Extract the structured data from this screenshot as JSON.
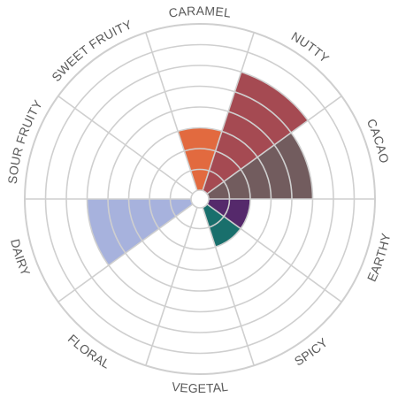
{
  "chart_data": {
    "type": "radial-bar",
    "categories": [
      "CARAMEL",
      "NUTTY",
      "CACAO",
      "EARTHY",
      "SPICY",
      "VEGETAL",
      "FLORAL",
      "DAIRY",
      "SOUR FRUITY",
      "SWEET FRUITY"
    ],
    "values": [
      3,
      6,
      5,
      2,
      2,
      0,
      0,
      5,
      0,
      0
    ],
    "colors": [
      "#e26a3f",
      "#a54a52",
      "#725c5e",
      "#55296b",
      "#196f6c",
      "#cccccc",
      "#cccccc",
      "#a7b2dd",
      "#cccccc",
      "#cccccc"
    ],
    "rlim": [
      0,
      8
    ],
    "grid": true,
    "ring_color": "#cfcfcf"
  }
}
